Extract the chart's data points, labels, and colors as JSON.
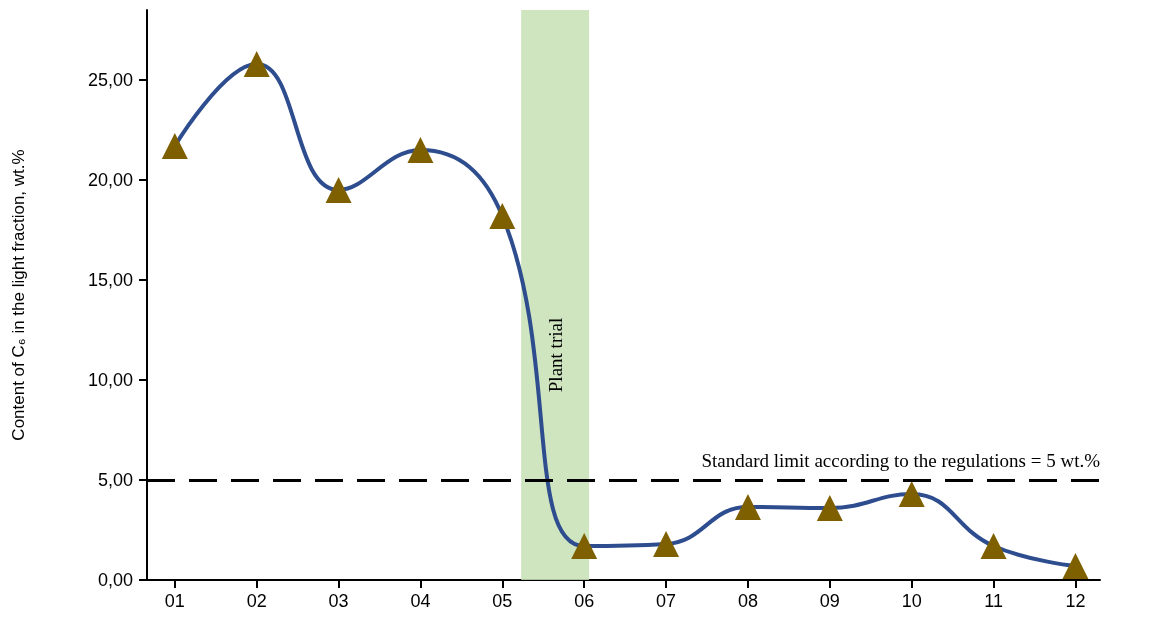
{
  "chart_data": {
    "type": "line",
    "ylabel": "Content of C₆ in the light fraction, wt.%",
    "x": [
      1,
      2,
      3,
      4,
      5,
      6,
      7,
      8,
      9,
      10,
      11,
      12
    ],
    "series": [
      {
        "color": "#2e4d8f",
        "colors": [
          "#7f6000",
          "#7f6000",
          "#7f6000",
          "#7f6000",
          "#7f6000",
          "#7f6000",
          "#7f6000",
          "#7f6000",
          "#7f6000",
          "#7f6000",
          "#7f6000",
          "#7f6000"
        ],
        "values": [
          21.7,
          25.8,
          19.5,
          21.5,
          18.2,
          1.7,
          1.8,
          3.65,
          3.6,
          4.3,
          1.7,
          0.7
        ]
      }
    ],
    "xlim": [
      0.66,
      12.3
    ],
    "xticks": [
      {
        "value": 1,
        "label": "01"
      },
      {
        "value": 2,
        "label": "02"
      },
      {
        "value": 3,
        "label": "03"
      },
      {
        "value": 4,
        "label": "04"
      },
      {
        "value": 5,
        "label": "05"
      },
      {
        "value": 6,
        "label": "06"
      },
      {
        "value": 7,
        "label": "07"
      },
      {
        "value": 8,
        "label": "08"
      },
      {
        "value": 9,
        "label": "09"
      },
      {
        "value": 10,
        "label": "10"
      },
      {
        "value": 11,
        "label": "11"
      },
      {
        "value": 12,
        "label": "12"
      }
    ],
    "ylim": [
      0,
      28.5
    ],
    "yticks": [
      {
        "value": 0,
        "label": "0,00"
      },
      {
        "value": 5,
        "label": "5,00"
      },
      {
        "value": 10,
        "label": "10,00"
      },
      {
        "value": 15,
        "label": "15,00"
      },
      {
        "value": 20,
        "label": "20,00"
      },
      {
        "value": 25,
        "label": "25,00"
      }
    ],
    "ref_lines": [
      {
        "axis": "y",
        "value": 5,
        "label": "Standard limit according to the regulations = 5 wt.%",
        "color": "#000000",
        "line_style": "dashed"
      }
    ],
    "bands": [
      {
        "axis": "x",
        "from": 5.23,
        "to": 6.06,
        "label": "Plant trial",
        "color": "#c5e0b4"
      }
    ],
    "grid": false,
    "marker": "triangle",
    "line_style": "solid"
  }
}
